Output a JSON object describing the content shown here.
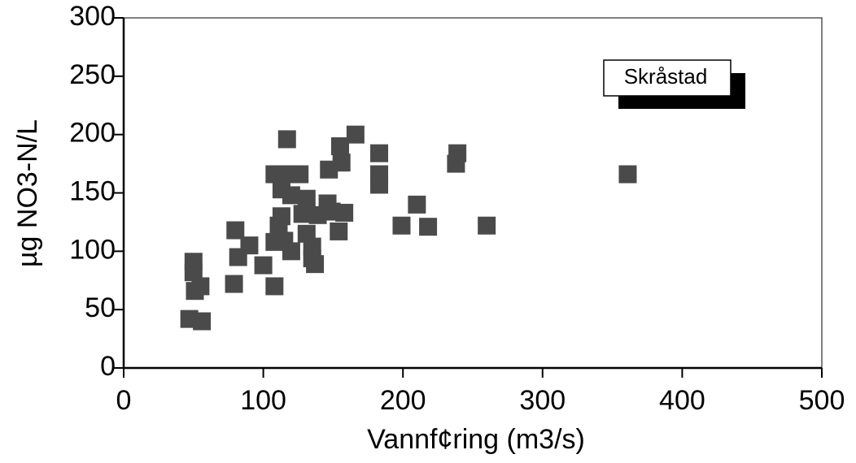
{
  "chart_data": {
    "type": "scatter",
    "x_label": "Vannf¢ring (m3/s)",
    "y_label": "µg NO3-N/L",
    "x": [
      47,
      56,
      50,
      50,
      51,
      55,
      79,
      80,
      82,
      90,
      100,
      108,
      117,
      108,
      117,
      126,
      113,
      120,
      131,
      111,
      115,
      120,
      108,
      113,
      128,
      131,
      135,
      135,
      137,
      139,
      146,
      147,
      155,
      156,
      149,
      158,
      154,
      166,
      183,
      183,
      183,
      199,
      210,
      218,
      238,
      239,
      260,
      361
    ],
    "series": [
      {
        "name": "Skråstad",
        "color": "#4a4a4a",
        "values": [
          42,
          40,
          91,
          82,
          66,
          70,
          72,
          118,
          95,
          105,
          88,
          70,
          196,
          166,
          166,
          166,
          153,
          148,
          145,
          122,
          109,
          100,
          108,
          130,
          132,
          115,
          94,
          104,
          89,
          131,
          141,
          170,
          190,
          176,
          134,
          133,
          117,
          200,
          184,
          166,
          157,
          122,
          140,
          121,
          175,
          184,
          122,
          166
        ]
      }
    ],
    "xlim": [
      0,
      500
    ],
    "xticks": [
      0,
      100,
      200,
      300,
      400,
      500
    ],
    "ylim": [
      0,
      300
    ],
    "yticks": [
      0,
      50,
      100,
      150,
      200,
      250,
      300
    ],
    "legend": "top-right"
  }
}
